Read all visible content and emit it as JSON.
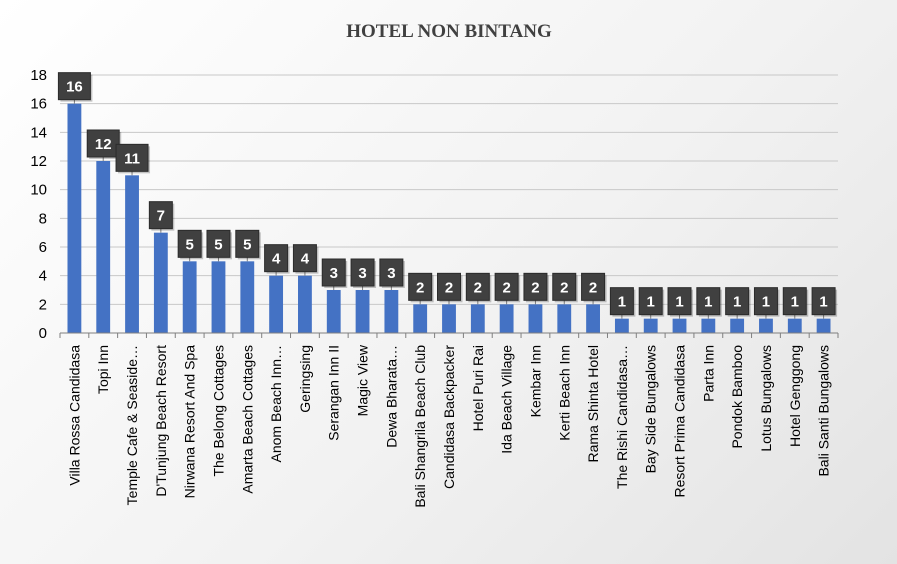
{
  "chart_data": {
    "type": "bar",
    "title": "HOTEL NON BINTANG",
    "xlabel": "",
    "ylabel": "",
    "ylim": [
      0,
      18
    ],
    "yticks": [
      0,
      2,
      4,
      6,
      8,
      10,
      12,
      14,
      16,
      18
    ],
    "grid": true,
    "legend": "none",
    "colors": {
      "bar": "#4472c4",
      "label_box": "#404040",
      "grid": "#c8c8c8",
      "axis": "#7f7f7f"
    },
    "categories": [
      "Villa Rossa Candidasa",
      "Topi Inn",
      "Temple Cafe & Seaside…",
      "D'Tunjung Beach Resort",
      "Nirwana Resort And Spa",
      "The Belong Cottages",
      "Amarta Beach Cottages",
      "Anom Beach Inn…",
      "Geringsing",
      "Serangan Inn II",
      "Magic View",
      "Dewa Bharata…",
      "Bali Shangrila Beach Club",
      "Candidasa Backpacker",
      "Hotel Puri Rai",
      "Ida Beach Village",
      "Kembar Inn",
      "Kerti Beach Inn",
      "Rama Shinta Hotel",
      "The Rishi Candidasa…",
      "Bay Side Bungalows",
      "Resort Prima Candidasa",
      "Parta Inn",
      "Pondok Bamboo",
      "Lotus Bungalows",
      "Hotel Genggong",
      "Bali Santi Bungalows"
    ],
    "values": [
      16,
      12,
      11,
      7,
      5,
      5,
      5,
      4,
      4,
      3,
      3,
      3,
      2,
      2,
      2,
      2,
      2,
      2,
      2,
      1,
      1,
      1,
      1,
      1,
      1,
      1,
      1
    ]
  }
}
